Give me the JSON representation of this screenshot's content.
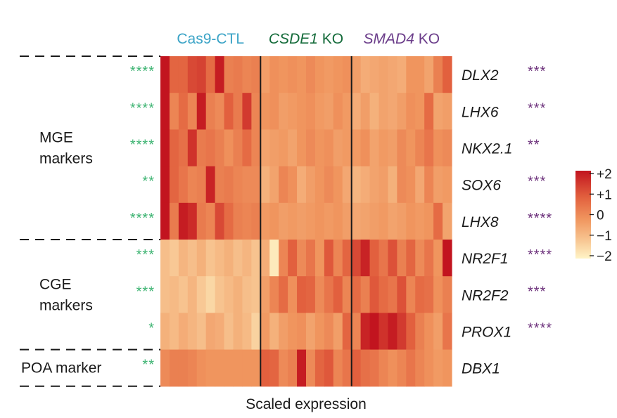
{
  "chart_data": {
    "type": "heatmap",
    "xlabel": "Scaled expression",
    "conditions": [
      {
        "parts": [
          {
            "text": "Cas9-CTL",
            "italic": false
          }
        ],
        "color": "#3aa3c6",
        "n_samples": 11
      },
      {
        "parts": [
          {
            "text": "CSDE1",
            "italic": true
          },
          {
            "text": " KO",
            "italic": false
          }
        ],
        "color": "#146b3a",
        "n_samples": 10
      },
      {
        "parts": [
          {
            "text": "SMAD4",
            "italic": true
          },
          {
            "text": " KO",
            "italic": false
          }
        ],
        "color": "#6b3d8a",
        "n_samples": 11
      }
    ],
    "genes": [
      {
        "name": "DLX2",
        "left_sig": "****",
        "right_sig": "***"
      },
      {
        "name": "LHX6",
        "left_sig": "****",
        "right_sig": "***"
      },
      {
        "name": "NKX2.1",
        "left_sig": "****",
        "right_sig": "**"
      },
      {
        "name": "SOX6",
        "left_sig": "**",
        "right_sig": "***"
      },
      {
        "name": "LHX8",
        "left_sig": "****",
        "right_sig": "****"
      },
      {
        "name": "NR2F1",
        "left_sig": "***",
        "right_sig": "****"
      },
      {
        "name": "NR2F2",
        "left_sig": "***",
        "right_sig": "***"
      },
      {
        "name": "PROX1",
        "left_sig": "*",
        "right_sig": "****"
      },
      {
        "name": "DBX1",
        "left_sig": "**",
        "right_sig": ""
      }
    ],
    "gene_groups": [
      {
        "lines": [
          "MGE",
          "markers"
        ],
        "rows": [
          0,
          4
        ]
      },
      {
        "lines": [
          "CGE",
          "markers"
        ],
        "rows": [
          5,
          7
        ]
      },
      {
        "lines": [
          "POA marker"
        ],
        "rows": [
          8,
          8
        ]
      }
    ],
    "colorbar": {
      "ticks": [
        "+2",
        "+1",
        "0",
        "−1",
        "−2"
      ],
      "range": [
        -2,
        2
      ],
      "colors": [
        "#fff4c6",
        "#f7c38f",
        "#f0955e",
        "#e2603e",
        "#c2141f"
      ]
    },
    "left_sig_color": "#3cb371",
    "right_sig_color": "#6b2f7a",
    "values": [
      [
        2.2,
        0.9,
        0.9,
        1.3,
        1.4,
        0.8,
        1.9,
        0.4,
        0.5,
        0.3,
        0.4,
        -0.2,
        0.1,
        0.0,
        0.1,
        0.0,
        0.2,
        0.0,
        -0.1,
        0.0,
        0.1,
        -0.2,
        -0.5,
        -0.4,
        -0.3,
        -0.4,
        -0.5,
        0.0,
        0.0,
        -0.3,
        0.4,
        1.0
      ],
      [
        2.2,
        0.3,
        0.8,
        0.3,
        1.9,
        0.4,
        0.2,
        1.0,
        0.5,
        1.5,
        0.3,
        0.0,
        0.1,
        -0.2,
        -0.1,
        0.0,
        0.1,
        -0.1,
        -0.2,
        0.1,
        -0.1,
        -0.5,
        -0.2,
        -0.6,
        -0.3,
        -0.4,
        -0.2,
        0.1,
        0.0,
        0.8,
        -0.3,
        -0.2
      ],
      [
        2.2,
        0.9,
        0.7,
        1.6,
        0.5,
        0.6,
        0.4,
        0.1,
        0.4,
        0.8,
        0.3,
        -0.3,
        -0.2,
        -0.1,
        -0.3,
        0.0,
        0.2,
        0.0,
        0.1,
        -0.2,
        -0.1,
        -0.1,
        0.1,
        -0.3,
        -0.1,
        -0.2,
        0.2,
        0.0,
        0.3,
        0.6,
        0.1,
        0.2
      ],
      [
        2.2,
        0.9,
        0.6,
        0.3,
        0.4,
        1.8,
        0.4,
        0.5,
        0.3,
        0.2,
        0.2,
        -0.6,
        -0.3,
        0.3,
        0.1,
        -0.5,
        -0.2,
        0.0,
        0.2,
        0.0,
        -0.4,
        -0.7,
        -0.5,
        -0.3,
        -0.2,
        -0.6,
        0.2,
        0.1,
        -0.4,
        0.3,
        -0.2,
        -0.1
      ],
      [
        2.2,
        0.5,
        1.9,
        1.7,
        0.5,
        0.3,
        1.3,
        0.8,
        0.4,
        0.3,
        0.4,
        -0.1,
        0.0,
        -0.2,
        -0.1,
        -0.2,
        -0.1,
        0.0,
        -0.1,
        0.0,
        -0.2,
        -0.4,
        -0.3,
        -0.2,
        -0.1,
        -0.3,
        -0.2,
        0.0,
        -0.1,
        0.0,
        0.8,
        -0.3
      ],
      [
        -0.9,
        -1.1,
        -0.7,
        -0.9,
        -0.6,
        -1.0,
        -0.8,
        -0.6,
        -0.9,
        -0.7,
        -1.0,
        -0.5,
        -1.8,
        0.3,
        1.0,
        0.2,
        0.6,
        0.0,
        1.1,
        0.3,
        0.9,
        1.3,
        1.8,
        1.0,
        0.6,
        1.2,
        0.4,
        0.9,
        0.2,
        0.6,
        0.0,
        2.0
      ],
      [
        -0.9,
        -0.8,
        -1.0,
        -0.7,
        -1.1,
        -1.4,
        -1.0,
        -0.8,
        -0.6,
        -0.9,
        -1.0,
        -0.2,
        0.3,
        0.8,
        0.1,
        1.0,
        0.9,
        0.2,
        0.6,
        1.0,
        0.3,
        0.8,
        0.4,
        1.1,
        0.8,
        0.6,
        1.2,
        0.3,
        0.8,
        0.7,
        0.1,
        0.4
      ],
      [
        -0.6,
        -0.8,
        -0.5,
        -0.7,
        -0.9,
        -0.4,
        -0.5,
        -0.9,
        -0.6,
        -0.8,
        -1.3,
        -0.1,
        -0.6,
        -0.2,
        0.0,
        0.1,
        -0.3,
        0.0,
        0.2,
        -0.2,
        0.9,
        0.3,
        1.8,
        2.0,
        1.6,
        1.9,
        1.5,
        1.0,
        0.4,
        0.1,
        -0.2,
        0.6
      ],
      [
        0.2,
        0.4,
        0.4,
        0.3,
        0.1,
        0.0,
        0.0,
        0.0,
        0.0,
        0.0,
        0.0,
        1.0,
        0.9,
        0.2,
        0.4,
        1.9,
        0.2,
        0.9,
        1.1,
        0.3,
        0.6,
        1.0,
        0.7,
        0.6,
        0.3,
        0.1,
        0.3,
        0.6,
        0.3,
        0.1,
        -0.1,
        0.0
      ]
    ]
  }
}
